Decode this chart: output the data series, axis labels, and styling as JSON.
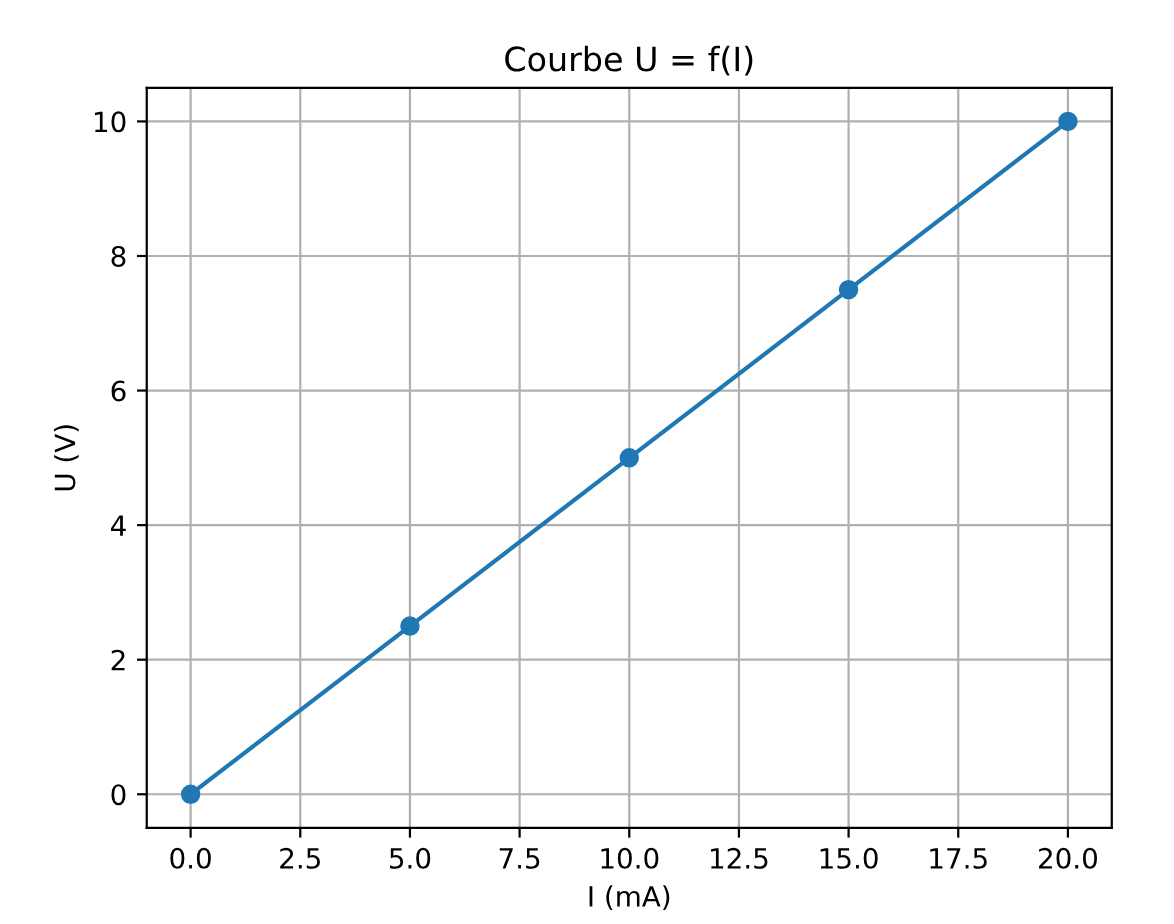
{
  "chart_data": {
    "type": "line",
    "title": "Courbe U = f(I)",
    "xlabel": "I (mA)",
    "ylabel": "U (V)",
    "x": [
      0,
      5,
      10,
      15,
      20
    ],
    "series": [
      {
        "color": "#1f77b4",
        "values": [
          0,
          2.5,
          5,
          7.5,
          10
        ]
      }
    ],
    "xlim": [
      -1,
      21
    ],
    "ylim": [
      -0.5,
      10.5
    ],
    "xticks": [
      {
        "value": 0,
        "label": "0.0"
      },
      {
        "value": 2.5,
        "label": "2.5"
      },
      {
        "value": 5,
        "label": "5.0"
      },
      {
        "value": 7.5,
        "label": "7.5"
      },
      {
        "value": 10,
        "label": "10.0"
      },
      {
        "value": 12.5,
        "label": "12.5"
      },
      {
        "value": 15,
        "label": "15.0"
      },
      {
        "value": 17.5,
        "label": "17.5"
      },
      {
        "value": 20,
        "label": "20.0"
      }
    ],
    "yticks": [
      0,
      2,
      4,
      6,
      8,
      10
    ],
    "marker": "circle",
    "line_style": "solid",
    "grid": true
  }
}
